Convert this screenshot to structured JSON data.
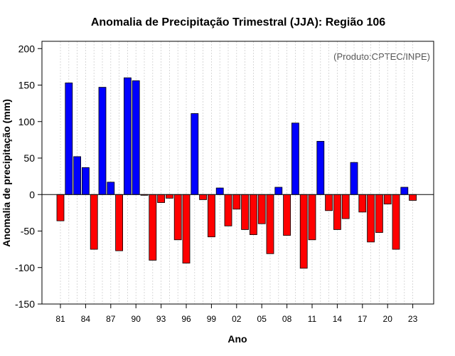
{
  "chart_data": {
    "type": "bar",
    "title": "Anomalia de Precipitação Trimestral (JJA): Região 106",
    "xlabel": "Ano",
    "ylabel": "Anomalia de precipitação (mm)",
    "credit": "(Produto:CPTEC/INPE)",
    "ylim": [
      -150,
      210
    ],
    "yticks": [
      -150,
      -100,
      -50,
      0,
      50,
      100,
      150,
      200
    ],
    "grid": true,
    "positive_color": "#0000ff",
    "negative_color": "#ff0000",
    "categories": [
      "81",
      "82",
      "83",
      "84",
      "85",
      "86",
      "87",
      "88",
      "89",
      "90",
      "91",
      "92",
      "93",
      "94",
      "95",
      "96",
      "97",
      "98",
      "99",
      "00",
      "01",
      "02",
      "03",
      "04",
      "05",
      "06",
      "07",
      "08",
      "09",
      "10",
      "11",
      "12",
      "13",
      "14",
      "15",
      "16",
      "17",
      "18",
      "19",
      "20",
      "21",
      "22",
      "23"
    ],
    "values": [
      -36,
      153,
      52,
      37,
      -75,
      147,
      17,
      -77,
      160,
      156,
      -1,
      -90,
      -11,
      -5,
      -62,
      -94,
      111,
      -7,
      -58,
      9,
      -43,
      -20,
      -48,
      -55,
      -40,
      -81,
      10,
      -56,
      98,
      -101,
      -62,
      73,
      -22,
      -48,
      -33,
      44,
      -24,
      -65,
      -52,
      -13,
      -75,
      10,
      -8
    ],
    "xtick_labels": [
      "81",
      "84",
      "87",
      "90",
      "93",
      "96",
      "99",
      "02",
      "05",
      "08",
      "11",
      "14",
      "17",
      "20",
      "23"
    ]
  }
}
